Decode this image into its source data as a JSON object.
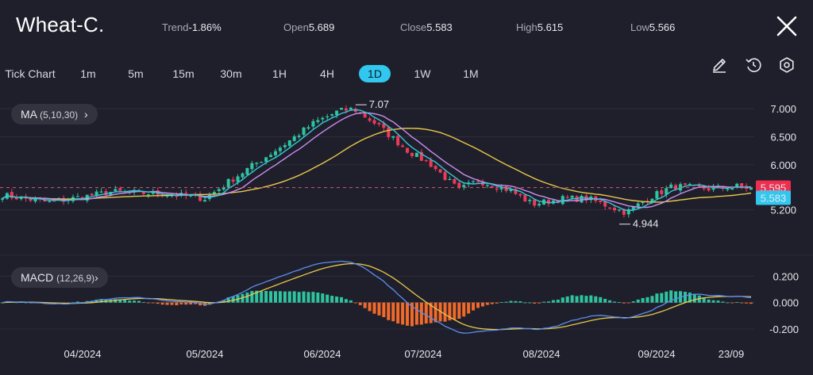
{
  "header": {
    "title": "Wheat-C.",
    "stats": [
      {
        "label": "Trend",
        "value": "-1.86%"
      },
      {
        "label": "Open",
        "value": "5.689"
      },
      {
        "label": "Close",
        "value": "5.583"
      },
      {
        "label": "High",
        "value": "5.615"
      },
      {
        "label": "Low",
        "value": "5.566"
      }
    ]
  },
  "timeframes": [
    "Tick Chart",
    "1m",
    "5m",
    "15m",
    "30m",
    "1H",
    "4H",
    "1D",
    "1W",
    "1M"
  ],
  "active_timeframe": "1D",
  "tools": [
    "pencil-icon",
    "history-icon",
    "settings-icon"
  ],
  "indicators": {
    "ma": {
      "name": "MA",
      "params": "(5,10,30)"
    },
    "macd": {
      "name": "MACD",
      "params": "(12,26,9)"
    }
  },
  "colors": {
    "up": "#2ec4a0",
    "down": "#ee3a5a",
    "ma5": "#35c6d6",
    "ma10": "#c88ef0",
    "ma30": "#e8c84a",
    "dif": "#5b8ef0",
    "dea": "#e8c84a",
    "hist_pos": "#2ec4a0",
    "hist_neg": "#f26a2a",
    "active_tab": "#31c7ef"
  },
  "chart_data": [
    {
      "type": "candlestick",
      "title": "",
      "y_ticks": [
        "7.000",
        "6.500",
        "6.000",
        "5.200"
      ],
      "ylim": [
        4.7,
        7.1
      ],
      "x_ticks": [
        "04/2024",
        "05/2024",
        "06/2024",
        "07/2024",
        "08/2024",
        "09/2024",
        "23/09"
      ],
      "annotations": {
        "high": "7.07",
        "low": "4.944"
      },
      "price_tags": {
        "close_marker": "5.595",
        "last_price": "5.583"
      },
      "grid": true,
      "series": [
        {
          "name": "MA",
          "params": "(5,10,30)"
        }
      ]
    },
    {
      "type": "line",
      "title": "",
      "y_ticks": [
        "0.200",
        "0.000",
        "-0.200"
      ],
      "ylim": [
        -0.26,
        0.28
      ],
      "series": [
        {
          "name": "MACD",
          "params": "(12,26,9)"
        }
      ]
    }
  ]
}
